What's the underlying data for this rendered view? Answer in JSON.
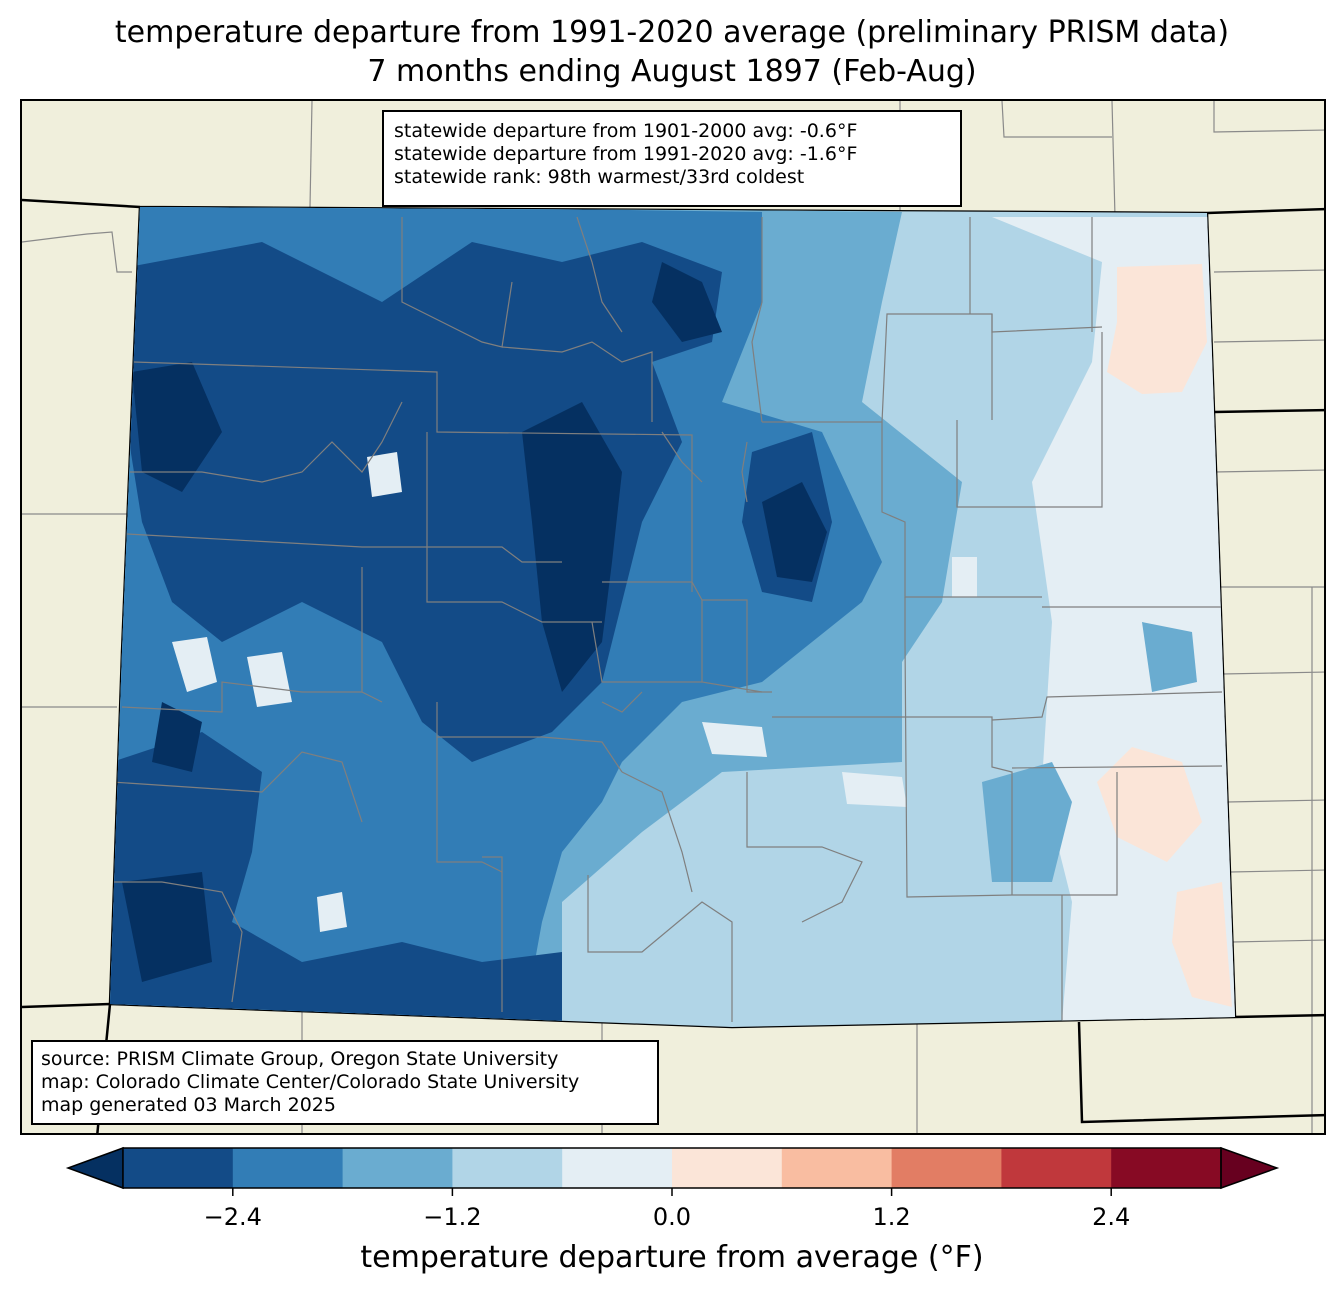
{
  "title": {
    "line1": "temperature departure from 1991-2020 average (preliminary PRISM data)",
    "line2": "7 months ending August 1897 (Feb-Aug)"
  },
  "stats": {
    "line1": "statewide departure from 1901-2000 avg: -0.6°F",
    "line2": "statewide departure from 1991-2020 avg: -1.6°F",
    "line3": "statewide rank: 98th warmest/33rd coldest"
  },
  "source": {
    "line1": "source: PRISM Climate Group, Oregon State University",
    "line2": "map: Colorado Climate Center/Colorado State University",
    "line3": "map generated 03 March 2025"
  },
  "colorbar": {
    "label": "temperature departure from average (°F)",
    "ticks": [
      "−2.4",
      "−1.2",
      "0.0",
      "1.2",
      "2.4"
    ],
    "levels": [
      -3.0,
      -2.4,
      -1.8,
      -1.2,
      -0.6,
      0.0,
      0.6,
      1.2,
      1.8,
      2.4,
      3.0
    ],
    "colors": [
      "#053061",
      "#134b87",
      "#327db6",
      "#6aacd0",
      "#b1d5e7",
      "#e4eef4",
      "#fbe5d8",
      "#f9bda1",
      "#e27d64",
      "#c0383c",
      "#870a24",
      "#67001f"
    ]
  },
  "map": {
    "region": "Colorado",
    "land_color": "#f0efdc"
  }
}
